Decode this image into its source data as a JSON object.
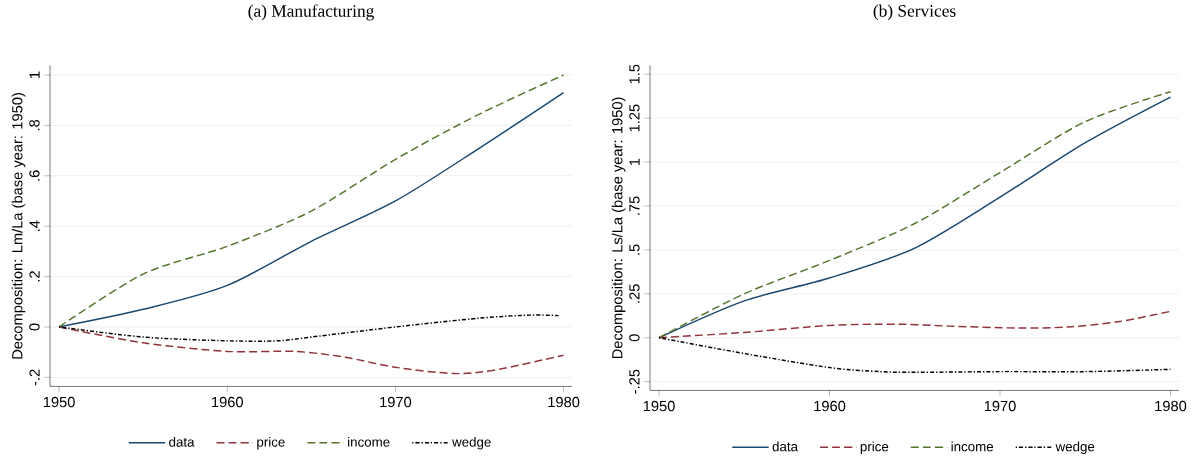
{
  "chart_data": [
    {
      "type": "line",
      "title": "(a) Manufacturing",
      "ylabel": "Decomposition: Lm/La (base year: 1950)",
      "xlim": [
        1949.46,
        1980.5
      ],
      "ylim": [
        -0.236,
        1.038
      ],
      "xticks": [
        1950,
        1960,
        1970,
        1980
      ],
      "yticks": [
        {
          "value": -0.2,
          "label": "-.2"
        },
        0,
        {
          "value": 0.2,
          "label": ".2"
        },
        {
          "value": 0.4,
          "label": ".4"
        },
        {
          "value": 0.6,
          "label": ".6"
        },
        {
          "value": 0.8,
          "label": ".8"
        },
        1
      ],
      "grid": "y",
      "legend": "bottom",
      "series": [
        {
          "name": "data",
          "color": "#1a476f",
          "line_style": "solid",
          "x": [
            1950,
            1955,
            1960,
            1965,
            1970,
            1975,
            1980
          ],
          "values": [
            0,
            0.07,
            0.165,
            0.34,
            0.5,
            0.71,
            0.93
          ]
        },
        {
          "name": "price",
          "color": "#90353b",
          "line_style": "dashed",
          "x": [
            1950,
            1955,
            1960,
            1964,
            1967,
            1970,
            1973.5,
            1976,
            1980
          ],
          "values": [
            0,
            -0.063,
            -0.097,
            -0.097,
            -0.12,
            -0.16,
            -0.185,
            -0.17,
            -0.112
          ]
        },
        {
          "name": "income",
          "color": "#55752f",
          "line_style": "dashed",
          "x": [
            1950,
            1955,
            1960,
            1965,
            1970,
            1975,
            1980
          ],
          "values": [
            0,
            0.21,
            0.32,
            0.46,
            0.665,
            0.845,
            1.0
          ]
        },
        {
          "name": "wedge",
          "color": "#000000",
          "line_style": "dotted",
          "x": [
            1950,
            1955,
            1960,
            1963,
            1965,
            1970,
            1975,
            1978,
            1979.7
          ],
          "values": [
            0,
            -0.04,
            -0.055,
            -0.055,
            -0.04,
            0,
            0.035,
            0.047,
            0.045
          ]
        }
      ]
    },
    {
      "type": "line",
      "title": "(b) Services",
      "ylabel": "Decomposition: Ls/La (base year: 1950)",
      "xlim": [
        1949.47,
        1980.5
      ],
      "ylim": [
        -0.3,
        1.55
      ],
      "xticks": [
        1950,
        1960,
        1970,
        1980
      ],
      "yticks": [
        {
          "value": -0.25,
          "label": "-.25"
        },
        0,
        {
          "value": 0.25,
          "label": ".25"
        },
        {
          "value": 0.5,
          "label": ".5"
        },
        {
          "value": 0.75,
          "label": ".75"
        },
        1,
        1.25,
        1.5
      ],
      "grid": "y",
      "legend": "bottom",
      "series": [
        {
          "name": "data",
          "color": "#1a476f",
          "line_style": "solid",
          "x": [
            1950,
            1955,
            1960,
            1965,
            1970,
            1975,
            1980
          ],
          "values": [
            0,
            0.21,
            0.34,
            0.51,
            0.8,
            1.11,
            1.37
          ]
        },
        {
          "name": "price",
          "color": "#90353b",
          "line_style": "dashed",
          "x": [
            1950,
            1955,
            1960,
            1964,
            1967,
            1971,
            1974,
            1977,
            1980
          ],
          "values": [
            0,
            0.03,
            0.07,
            0.077,
            0.066,
            0.055,
            0.061,
            0.092,
            0.15
          ]
        },
        {
          "name": "income",
          "color": "#55752f",
          "line_style": "dashed",
          "x": [
            1950,
            1955,
            1960,
            1965,
            1970,
            1975,
            1980
          ],
          "values": [
            0,
            0.25,
            0.44,
            0.65,
            0.94,
            1.23,
            1.4
          ]
        },
        {
          "name": "wedge",
          "color": "#000000",
          "line_style": "dotted",
          "x": [
            1950,
            1955,
            1960,
            1963,
            1965,
            1970,
            1975,
            1980
          ],
          "values": [
            0,
            -0.09,
            -0.17,
            -0.193,
            -0.197,
            -0.193,
            -0.193,
            -0.18
          ]
        }
      ]
    }
  ]
}
